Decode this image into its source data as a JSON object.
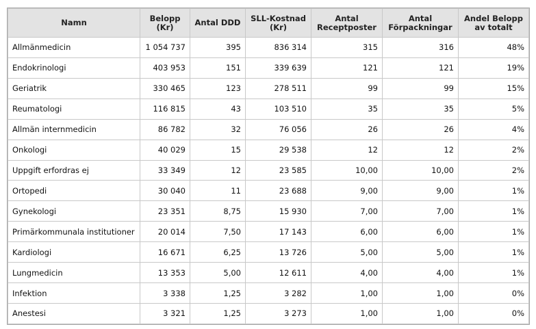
{
  "headers": {
    "namn": [
      "Namn"
    ],
    "belopp": [
      "Belopp",
      "(Kr)"
    ],
    "ddd": [
      "Antal DDD"
    ],
    "sll": [
      "SLL-Kostnad",
      "(Kr)"
    ],
    "recept": [
      "Antal",
      "Receptposter"
    ],
    "forp": [
      "Antal",
      "Förpackningar"
    ],
    "andel": [
      "Andel Belopp",
      "av totalt"
    ]
  },
  "rows": [
    {
      "namn": "Allmänmedicin",
      "belopp": "1 054 737",
      "ddd": "395",
      "sll": "836 314",
      "recept": "315",
      "forp": "316",
      "andel": "48%"
    },
    {
      "namn": "Endokrinologi",
      "belopp": "403 953",
      "ddd": "151",
      "sll": "339 639",
      "recept": "121",
      "forp": "121",
      "andel": "19%"
    },
    {
      "namn": "Geriatrik",
      "belopp": "330 465",
      "ddd": "123",
      "sll": "278 511",
      "recept": "99",
      "forp": "99",
      "andel": "15%"
    },
    {
      "namn": "Reumatologi",
      "belopp": "116 815",
      "ddd": "43",
      "sll": "103 510",
      "recept": "35",
      "forp": "35",
      "andel": "5%"
    },
    {
      "namn": "Allmän internmedicin",
      "belopp": "86 782",
      "ddd": "32",
      "sll": "76 056",
      "recept": "26",
      "forp": "26",
      "andel": "4%"
    },
    {
      "namn": "Onkologi",
      "belopp": "40 029",
      "ddd": "15",
      "sll": "29 538",
      "recept": "12",
      "forp": "12",
      "andel": "2%"
    },
    {
      "namn": "Uppgift erfordras ej",
      "belopp": "33 349",
      "ddd": "12",
      "sll": "23 585",
      "recept": "10,00",
      "forp": "10,00",
      "andel": "2%"
    },
    {
      "namn": "Ortopedi",
      "belopp": "30 040",
      "ddd": "11",
      "sll": "23 688",
      "recept": "9,00",
      "forp": "9,00",
      "andel": "1%"
    },
    {
      "namn": "Gynekologi",
      "belopp": "23 351",
      "ddd": "8,75",
      "sll": "15 930",
      "recept": "7,00",
      "forp": "7,00",
      "andel": "1%"
    },
    {
      "namn": "Primärkommunala institutioner",
      "belopp": "20 014",
      "ddd": "7,50",
      "sll": "17 143",
      "recept": "6,00",
      "forp": "6,00",
      "andel": "1%"
    },
    {
      "namn": "Kardiologi",
      "belopp": "16 671",
      "ddd": "6,25",
      "sll": "13 726",
      "recept": "5,00",
      "forp": "5,00",
      "andel": "1%"
    },
    {
      "namn": "Lungmedicin",
      "belopp": "13 353",
      "ddd": "5,00",
      "sll": "12 611",
      "recept": "4,00",
      "forp": "4,00",
      "andel": "1%"
    },
    {
      "namn": "Infektion",
      "belopp": "3 338",
      "ddd": "1,25",
      "sll": "3 282",
      "recept": "1,00",
      "forp": "1,00",
      "andel": "0%"
    },
    {
      "namn": "Anestesi",
      "belopp": "3 321",
      "ddd": "1,25",
      "sll": "3 273",
      "recept": "1,00",
      "forp": "1,00",
      "andel": "0%"
    }
  ]
}
